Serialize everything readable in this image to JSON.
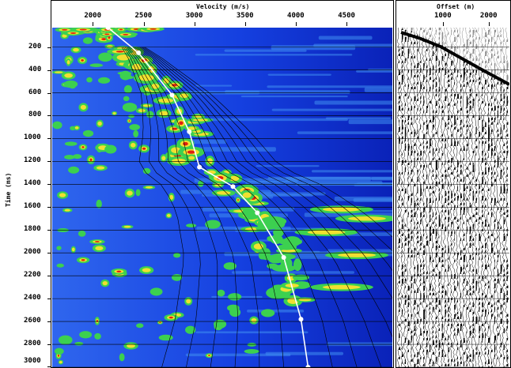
{
  "semblance_panel": {
    "x_axis": {
      "title": "Velocity (m/s)",
      "ticks": [
        {
          "value": 2000,
          "label": "2000"
        },
        {
          "value": 2500,
          "label": "2500"
        },
        {
          "value": 3000,
          "label": "3000"
        },
        {
          "value": 3500,
          "label": "3500"
        },
        {
          "value": 4000,
          "label": "4000"
        },
        {
          "value": 4500,
          "label": "4500"
        }
      ],
      "range": [
        1600,
        4950
      ]
    },
    "y_axis": {
      "title": "Time (ms)",
      "ticks": [
        {
          "value": 200,
          "label": "200"
        },
        {
          "value": 400,
          "label": "400"
        },
        {
          "value": 600,
          "label": "600"
        },
        {
          "value": 800,
          "label": "800"
        },
        {
          "value": 1000,
          "label": "1000"
        },
        {
          "value": 1200,
          "label": "1200"
        },
        {
          "value": 1400,
          "label": "1400"
        },
        {
          "value": 1600,
          "label": "1600"
        },
        {
          "value": 1800,
          "label": "1800"
        },
        {
          "value": 2000,
          "label": "2000"
        },
        {
          "value": 2200,
          "label": "2200"
        },
        {
          "value": 2400,
          "label": "2400"
        },
        {
          "value": 2600,
          "label": "2600"
        },
        {
          "value": 2800,
          "label": "2800"
        },
        {
          "value": 3000,
          "label": "3000"
        }
      ],
      "range": [
        30,
        3000
      ]
    },
    "colors": {
      "background": "#1540e0",
      "deep": "#0a22b8",
      "mid": "#3f8ef0",
      "green": "#3cd050",
      "yellow": "#f0e030",
      "red": "#e02010",
      "pick": "#ffffff"
    },
    "velocity_picks": [
      {
        "t": 30,
        "v": 2150
      },
      {
        "t": 250,
        "v": 2450
      },
      {
        "t": 620,
        "v": 2780
      },
      {
        "t": 940,
        "v": 2950
      },
      {
        "t": 1250,
        "v": 3050
      },
      {
        "t": 1420,
        "v": 3380
      },
      {
        "t": 1650,
        "v": 3620
      },
      {
        "t": 2040,
        "v": 3880
      },
      {
        "t": 2580,
        "v": 4050
      },
      {
        "t": 3000,
        "v": 4120
      }
    ]
  },
  "gather_panel": {
    "x_axis": {
      "title": "Offset (m)",
      "ticks": [
        {
          "value": 1000,
          "label": "1000"
        },
        {
          "value": 2000,
          "label": "2000"
        }
      ],
      "range": [
        0,
        2450
      ]
    }
  }
}
